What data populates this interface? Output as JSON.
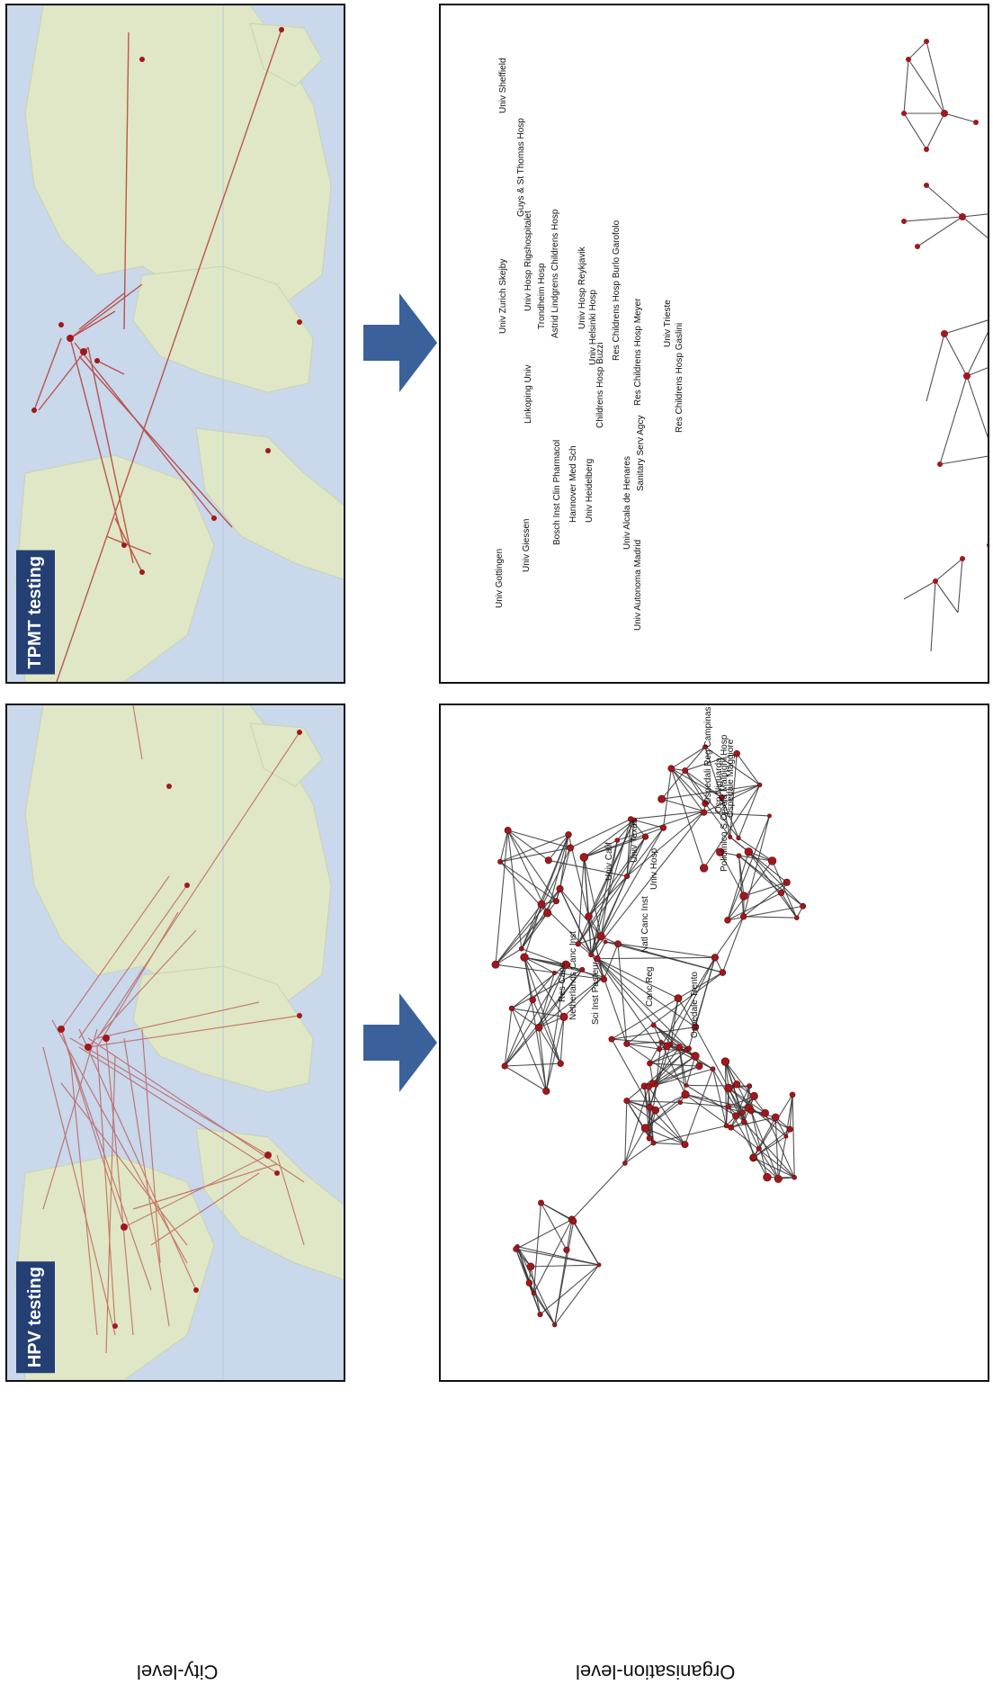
{
  "labels": {
    "hpv": "HPV testing",
    "tpmt": "TPMT testing",
    "city_level": "City-level",
    "org_level": "Organisation-level"
  },
  "colors": {
    "tag_bg": "#243f74",
    "arrow": "#3a6199",
    "map_water": "#c9d8ea",
    "map_land": "#dfe7c6",
    "edge_map": "#b3261e",
    "node": "#a0181c"
  },
  "tpmt_orgs": [
    "Univ Sheffield",
    "Guys & St Thomas Hosp",
    "Univ Zurich Skejby",
    "Univ Hosp Rigshospitalet",
    "Trondheim Hosp",
    "Astrid Lindgrens Childrens Hosp",
    "Univ Hosp Reykjavik",
    "Univ Helsinki Hosp",
    "Linkoping Univ",
    "Res Childrens Hosp Burlo Garofolo",
    "Univ Trieste",
    "Childrens Hosp Buzzi",
    "Res Childrens Hosp Meyer",
    "Res Childrens Hosp Gaslini",
    "Sanitary Serv Agcy",
    "Bosch Inst Clin Pharmacol",
    "Hannover Med Sch",
    "Univ Heidelberg",
    "Univ Alcala de Henares",
    "Univ Autonoma Madrid",
    "Univ Giessen",
    "Univ Gottingen"
  ],
  "hpv_orgs": [
    "Ospedali Reg Campinas",
    "Osp Niguarda",
    "Ospedale Maggiore",
    "Policlinico S Orsola Malpighi Hosp",
    "Univ Calif",
    "Univ Texas",
    "Univ Hosp",
    "Natl Canc Inst",
    "Res Canc",
    "Netherlands Canc Inst",
    "Sci Inst Pasteur",
    "Canc Reg",
    "Ospedale Trento"
  ]
}
